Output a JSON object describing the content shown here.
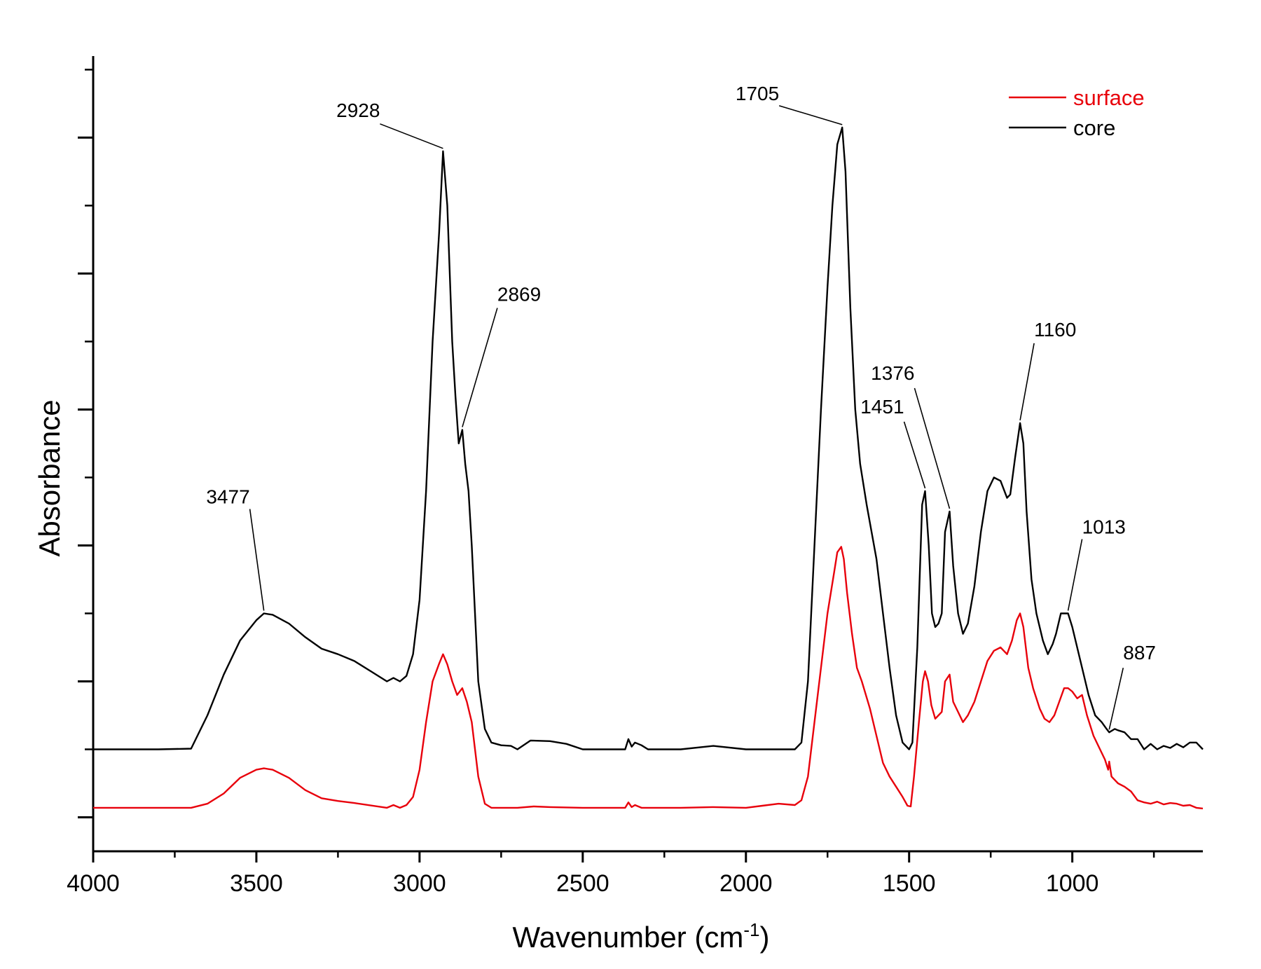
{
  "chart_data": {
    "type": "line",
    "title": "",
    "xlabel": "Wavenumber (cm",
    "xlabel_sup": "-1",
    "xlabel_close": ")",
    "ylabel": "Absorbance",
    "xlim": [
      4000,
      600
    ],
    "x_reversed": true,
    "ylim": [
      -0.05,
      1.12
    ],
    "y_tick_labels_shown": false,
    "x_ticks": [
      {
        "value": 4000,
        "label": "4000"
      },
      {
        "value": 3500,
        "label": "3500"
      },
      {
        "value": 3000,
        "label": "3000"
      },
      {
        "value": 2500,
        "label": "2500"
      },
      {
        "value": 2000,
        "label": "2000"
      },
      {
        "value": 1500,
        "label": "1500"
      },
      {
        "value": 1000,
        "label": "1000"
      }
    ],
    "x_minor_ticks": [
      3750,
      3250,
      2750,
      2250,
      1750,
      1250,
      750
    ],
    "y_major_ticks": [
      0,
      0.2,
      0.4,
      0.6,
      0.8,
      1.0
    ],
    "y_minor_ticks": [
      0.1,
      0.3,
      0.5,
      0.7,
      0.9,
      1.1
    ],
    "grid": false,
    "legend": {
      "placement": "top-right",
      "entries": [
        {
          "name": "surface",
          "color": "#e8000b"
        },
        {
          "name": "core",
          "color": "#000000"
        }
      ]
    },
    "series": [
      {
        "name": "core",
        "color": "#000000",
        "points": [
          [
            4000,
            0.1
          ],
          [
            3900,
            0.1
          ],
          [
            3800,
            0.1
          ],
          [
            3700,
            0.101
          ],
          [
            3650,
            0.15
          ],
          [
            3600,
            0.21
          ],
          [
            3550,
            0.26
          ],
          [
            3500,
            0.29
          ],
          [
            3477,
            0.3
          ],
          [
            3450,
            0.298
          ],
          [
            3400,
            0.285
          ],
          [
            3350,
            0.265
          ],
          [
            3300,
            0.248
          ],
          [
            3250,
            0.24
          ],
          [
            3200,
            0.23
          ],
          [
            3150,
            0.215
          ],
          [
            3100,
            0.2
          ],
          [
            3080,
            0.205
          ],
          [
            3060,
            0.2
          ],
          [
            3040,
            0.208
          ],
          [
            3020,
            0.24
          ],
          [
            3000,
            0.32
          ],
          [
            2980,
            0.48
          ],
          [
            2960,
            0.7
          ],
          [
            2940,
            0.86
          ],
          [
            2928,
            0.98
          ],
          [
            2915,
            0.9
          ],
          [
            2900,
            0.7
          ],
          [
            2890,
            0.62
          ],
          [
            2880,
            0.55
          ],
          [
            2869,
            0.57
          ],
          [
            2860,
            0.52
          ],
          [
            2850,
            0.48
          ],
          [
            2840,
            0.4
          ],
          [
            2820,
            0.2
          ],
          [
            2800,
            0.13
          ],
          [
            2780,
            0.11
          ],
          [
            2750,
            0.106
          ],
          [
            2720,
            0.105
          ],
          [
            2700,
            0.1
          ],
          [
            2660,
            0.113
          ],
          [
            2600,
            0.112
          ],
          [
            2550,
            0.108
          ],
          [
            2500,
            0.1
          ],
          [
            2400,
            0.1
          ],
          [
            2370,
            0.1
          ],
          [
            2360,
            0.115
          ],
          [
            2350,
            0.104
          ],
          [
            2340,
            0.11
          ],
          [
            2320,
            0.106
          ],
          [
            2300,
            0.1
          ],
          [
            2200,
            0.1
          ],
          [
            2100,
            0.105
          ],
          [
            2000,
            0.1
          ],
          [
            1900,
            0.1
          ],
          [
            1850,
            0.1
          ],
          [
            1830,
            0.11
          ],
          [
            1810,
            0.2
          ],
          [
            1790,
            0.4
          ],
          [
            1770,
            0.6
          ],
          [
            1750,
            0.78
          ],
          [
            1735,
            0.9
          ],
          [
            1720,
            0.99
          ],
          [
            1705,
            1.015
          ],
          [
            1695,
            0.95
          ],
          [
            1680,
            0.75
          ],
          [
            1665,
            0.6
          ],
          [
            1650,
            0.52
          ],
          [
            1630,
            0.46
          ],
          [
            1600,
            0.38
          ],
          [
            1580,
            0.3
          ],
          [
            1560,
            0.22
          ],
          [
            1540,
            0.15
          ],
          [
            1520,
            0.11
          ],
          [
            1500,
            0.1
          ],
          [
            1490,
            0.11
          ],
          [
            1475,
            0.25
          ],
          [
            1460,
            0.46
          ],
          [
            1451,
            0.48
          ],
          [
            1440,
            0.4
          ],
          [
            1430,
            0.3
          ],
          [
            1420,
            0.28
          ],
          [
            1410,
            0.285
          ],
          [
            1400,
            0.3
          ],
          [
            1390,
            0.42
          ],
          [
            1376,
            0.45
          ],
          [
            1365,
            0.37
          ],
          [
            1350,
            0.3
          ],
          [
            1335,
            0.27
          ],
          [
            1320,
            0.285
          ],
          [
            1300,
            0.34
          ],
          [
            1280,
            0.42
          ],
          [
            1260,
            0.48
          ],
          [
            1240,
            0.5
          ],
          [
            1220,
            0.495
          ],
          [
            1200,
            0.47
          ],
          [
            1190,
            0.475
          ],
          [
            1175,
            0.53
          ],
          [
            1160,
            0.58
          ],
          [
            1150,
            0.55
          ],
          [
            1140,
            0.45
          ],
          [
            1125,
            0.35
          ],
          [
            1110,
            0.3
          ],
          [
            1090,
            0.26
          ],
          [
            1075,
            0.24
          ],
          [
            1060,
            0.255
          ],
          [
            1050,
            0.27
          ],
          [
            1035,
            0.3
          ],
          [
            1025,
            0.3
          ],
          [
            1013,
            0.3
          ],
          [
            1000,
            0.28
          ],
          [
            985,
            0.25
          ],
          [
            970,
            0.22
          ],
          [
            950,
            0.18
          ],
          [
            930,
            0.15
          ],
          [
            910,
            0.14
          ],
          [
            895,
            0.13
          ],
          [
            887,
            0.125
          ],
          [
            870,
            0.13
          ],
          [
            860,
            0.128
          ],
          [
            840,
            0.125
          ],
          [
            820,
            0.115
          ],
          [
            800,
            0.115
          ],
          [
            780,
            0.1
          ],
          [
            760,
            0.108
          ],
          [
            740,
            0.1
          ],
          [
            720,
            0.105
          ],
          [
            700,
            0.102
          ],
          [
            680,
            0.108
          ],
          [
            660,
            0.103
          ],
          [
            640,
            0.11
          ],
          [
            620,
            0.11
          ],
          [
            600,
            0.1
          ]
        ]
      },
      {
        "name": "surface",
        "color": "#e8000b",
        "points": [
          [
            4000,
            0.014
          ],
          [
            3900,
            0.014
          ],
          [
            3800,
            0.014
          ],
          [
            3700,
            0.014
          ],
          [
            3650,
            0.02
          ],
          [
            3600,
            0.035
          ],
          [
            3550,
            0.058
          ],
          [
            3500,
            0.07
          ],
          [
            3477,
            0.072
          ],
          [
            3450,
            0.07
          ],
          [
            3400,
            0.058
          ],
          [
            3350,
            0.04
          ],
          [
            3300,
            0.028
          ],
          [
            3250,
            0.024
          ],
          [
            3200,
            0.021
          ],
          [
            3100,
            0.014
          ],
          [
            3080,
            0.018
          ],
          [
            3060,
            0.014
          ],
          [
            3040,
            0.018
          ],
          [
            3020,
            0.03
          ],
          [
            3000,
            0.07
          ],
          [
            2980,
            0.14
          ],
          [
            2960,
            0.2
          ],
          [
            2940,
            0.226
          ],
          [
            2928,
            0.24
          ],
          [
            2915,
            0.225
          ],
          [
            2900,
            0.2
          ],
          [
            2885,
            0.18
          ],
          [
            2869,
            0.19
          ],
          [
            2855,
            0.17
          ],
          [
            2840,
            0.14
          ],
          [
            2820,
            0.06
          ],
          [
            2800,
            0.02
          ],
          [
            2780,
            0.014
          ],
          [
            2700,
            0.014
          ],
          [
            2650,
            0.016
          ],
          [
            2600,
            0.015
          ],
          [
            2500,
            0.014
          ],
          [
            2400,
            0.014
          ],
          [
            2370,
            0.014
          ],
          [
            2360,
            0.022
          ],
          [
            2350,
            0.015
          ],
          [
            2340,
            0.018
          ],
          [
            2320,
            0.014
          ],
          [
            2200,
            0.014
          ],
          [
            2100,
            0.015
          ],
          [
            2000,
            0.014
          ],
          [
            1950,
            0.017
          ],
          [
            1900,
            0.02
          ],
          [
            1850,
            0.018
          ],
          [
            1830,
            0.025
          ],
          [
            1810,
            0.06
          ],
          [
            1790,
            0.14
          ],
          [
            1770,
            0.22
          ],
          [
            1750,
            0.3
          ],
          [
            1730,
            0.36
          ],
          [
            1720,
            0.39
          ],
          [
            1708,
            0.398
          ],
          [
            1700,
            0.38
          ],
          [
            1690,
            0.33
          ],
          [
            1675,
            0.27
          ],
          [
            1660,
            0.22
          ],
          [
            1645,
            0.2
          ],
          [
            1620,
            0.16
          ],
          [
            1600,
            0.12
          ],
          [
            1580,
            0.08
          ],
          [
            1560,
            0.06
          ],
          [
            1540,
            0.045
          ],
          [
            1520,
            0.03
          ],
          [
            1505,
            0.017
          ],
          [
            1495,
            0.016
          ],
          [
            1485,
            0.06
          ],
          [
            1470,
            0.14
          ],
          [
            1458,
            0.2
          ],
          [
            1451,
            0.215
          ],
          [
            1442,
            0.2
          ],
          [
            1432,
            0.165
          ],
          [
            1420,
            0.145
          ],
          [
            1410,
            0.15
          ],
          [
            1400,
            0.155
          ],
          [
            1390,
            0.2
          ],
          [
            1376,
            0.21
          ],
          [
            1365,
            0.17
          ],
          [
            1350,
            0.155
          ],
          [
            1335,
            0.14
          ],
          [
            1320,
            0.15
          ],
          [
            1300,
            0.17
          ],
          [
            1280,
            0.2
          ],
          [
            1260,
            0.23
          ],
          [
            1240,
            0.245
          ],
          [
            1220,
            0.25
          ],
          [
            1200,
            0.24
          ],
          [
            1185,
            0.26
          ],
          [
            1170,
            0.29
          ],
          [
            1160,
            0.3
          ],
          [
            1150,
            0.28
          ],
          [
            1135,
            0.22
          ],
          [
            1120,
            0.19
          ],
          [
            1100,
            0.16
          ],
          [
            1085,
            0.145
          ],
          [
            1070,
            0.14
          ],
          [
            1055,
            0.15
          ],
          [
            1040,
            0.17
          ],
          [
            1025,
            0.19
          ],
          [
            1013,
            0.19
          ],
          [
            1000,
            0.185
          ],
          [
            985,
            0.175
          ],
          [
            970,
            0.18
          ],
          [
            955,
            0.15
          ],
          [
            935,
            0.12
          ],
          [
            915,
            0.1
          ],
          [
            900,
            0.085
          ],
          [
            890,
            0.07
          ],
          [
            887,
            0.082
          ],
          [
            880,
            0.06
          ],
          [
            860,
            0.05
          ],
          [
            840,
            0.045
          ],
          [
            820,
            0.038
          ],
          [
            800,
            0.025
          ],
          [
            780,
            0.022
          ],
          [
            760,
            0.02
          ],
          [
            740,
            0.023
          ],
          [
            720,
            0.019
          ],
          [
            700,
            0.021
          ],
          [
            680,
            0.02
          ],
          [
            660,
            0.017
          ],
          [
            640,
            0.018
          ],
          [
            620,
            0.014
          ],
          [
            600,
            0.013
          ]
        ]
      }
    ],
    "annotations": [
      {
        "text": "3477",
        "x": 3477,
        "y": 0.3
      },
      {
        "text": "2928",
        "x": 2928,
        "y": 0.98
      },
      {
        "text": "2869",
        "x": 2869,
        "y": 0.57
      },
      {
        "text": "1705",
        "x": 1705,
        "y": 1.015
      },
      {
        "text": "1451",
        "x": 1451,
        "y": 0.48
      },
      {
        "text": "1376",
        "x": 1376,
        "y": 0.45
      },
      {
        "text": "1160",
        "x": 1160,
        "y": 0.58
      },
      {
        "text": "1013",
        "x": 1013,
        "y": 0.3
      },
      {
        "text": "887",
        "x": 887,
        "y": 0.125
      }
    ]
  }
}
